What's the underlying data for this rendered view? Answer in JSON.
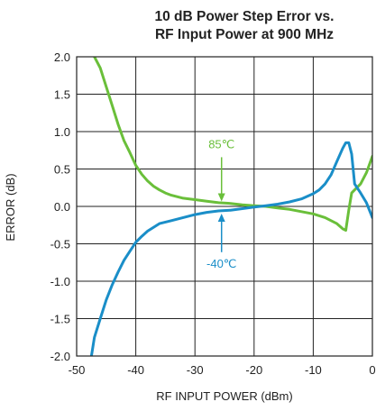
{
  "chart_data": {
    "type": "line",
    "title": "10 dB Power Step Error vs.",
    "subtitle": "RF Input Power at 900 MHz",
    "xlabel": "RF INPUT POWER (dBm)",
    "ylabel": "ERROR (dB)",
    "xlim": [
      -50,
      0
    ],
    "ylim": [
      -2.0,
      2.0
    ],
    "xticks": [
      -50,
      -40,
      -30,
      -20,
      -10,
      0
    ],
    "xtick_labels": [
      "-50",
      "-40",
      "-30",
      "-20",
      "-10",
      "0"
    ],
    "yticks": [
      2.0,
      1.5,
      1.0,
      0.5,
      0.0,
      -0.5,
      -1.0,
      -1.5,
      -2.0
    ],
    "ytick_labels": [
      "2.0",
      "1.5",
      "1.0",
      "0.5",
      "0.0",
      "-0.5",
      "-1.0",
      "-1.5",
      "-2.0"
    ],
    "grid": true,
    "legend": "none",
    "series": [
      {
        "name": "85℃",
        "color": "#6abf3a",
        "x": [
          -47,
          -46,
          -45,
          -44,
          -43,
          -42,
          -41,
          -40,
          -39,
          -38,
          -37,
          -36,
          -35,
          -34,
          -32,
          -30,
          -28,
          -26,
          -24,
          -22,
          -20,
          -18,
          -16,
          -14,
          -12,
          -10,
          -8,
          -6,
          -5,
          -4.5,
          -4,
          -3.5,
          -3,
          -2,
          -1,
          0
        ],
        "y": [
          2.0,
          1.85,
          1.6,
          1.35,
          1.1,
          0.88,
          0.72,
          0.55,
          0.43,
          0.34,
          0.27,
          0.22,
          0.18,
          0.15,
          0.11,
          0.09,
          0.07,
          0.05,
          0.04,
          0.02,
          0.01,
          0.0,
          -0.02,
          -0.04,
          -0.07,
          -0.1,
          -0.15,
          -0.23,
          -0.3,
          -0.32,
          -0.05,
          0.18,
          0.22,
          0.3,
          0.45,
          0.67
        ]
      },
      {
        "name": "-40℃",
        "color": "#1a8ec8",
        "x": [
          -47.5,
          -47,
          -46,
          -45,
          -44,
          -43,
          -42,
          -41,
          -40,
          -39,
          -38,
          -36,
          -34,
          -32,
          -30,
          -28,
          -26,
          -24,
          -22,
          -20,
          -18,
          -16,
          -14,
          -12,
          -10,
          -9,
          -8,
          -7,
          -6,
          -5,
          -4.5,
          -4,
          -3.5,
          -3,
          -2,
          -1,
          0
        ],
        "y": [
          -2.0,
          -1.75,
          -1.5,
          -1.25,
          -1.05,
          -0.88,
          -0.72,
          -0.6,
          -0.48,
          -0.4,
          -0.33,
          -0.23,
          -0.19,
          -0.15,
          -0.11,
          -0.08,
          -0.06,
          -0.05,
          -0.03,
          -0.01,
          0.01,
          0.03,
          0.06,
          0.1,
          0.17,
          0.22,
          0.3,
          0.42,
          0.6,
          0.78,
          0.85,
          0.85,
          0.7,
          0.3,
          0.18,
          0.05,
          -0.15
        ]
      }
    ],
    "annotations": [
      {
        "text": "85℃",
        "series": "85℃",
        "x": -25.5,
        "y": 0.03,
        "label_x": -25.5,
        "label_y": 0.73
      },
      {
        "text": "-40℃",
        "series": "-40℃",
        "x": -25.5,
        "y": -0.06,
        "label_x": -25.5,
        "label_y": -0.66
      }
    ]
  }
}
